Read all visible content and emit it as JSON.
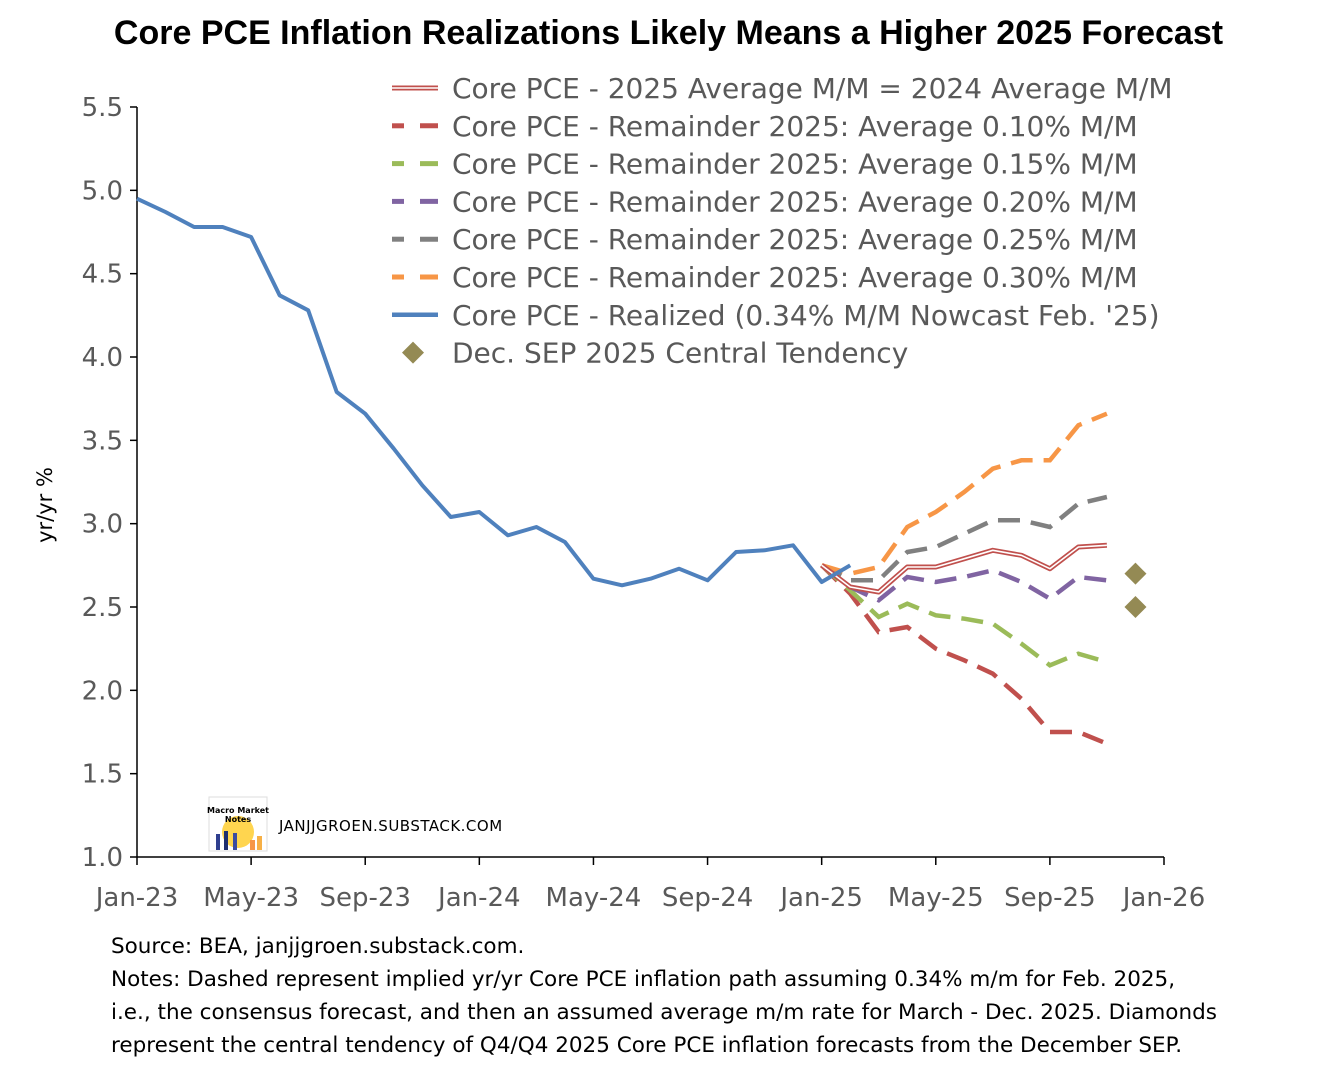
{
  "chart_data": {
    "type": "line",
    "title": "Core PCE Inflation Realizations Likely Means a Higher 2025 Forecast",
    "ylabel": "yr/yr %",
    "xlabel": "",
    "ylim": [
      1.0,
      5.5
    ],
    "y_ticks": [
      "1.0",
      "1.5",
      "2.0",
      "2.5",
      "3.0",
      "3.5",
      "4.0",
      "4.5",
      "5.0",
      "5.5"
    ],
    "x_ticks": [
      "Jan-23",
      "May-23",
      "Sep-23",
      "Jan-24",
      "May-24",
      "Sep-24",
      "Jan-25",
      "May-25",
      "Sep-25",
      "Jan-26"
    ],
    "x_start": "Jan-23",
    "legend_position": "top-right",
    "grid": false,
    "series": [
      {
        "name": "Core PCE - 2025 Average M/M = 2024 Average M/M",
        "style": "double",
        "color": "#c0504d",
        "points": [
          [
            "Jan-25",
            2.75
          ],
          [
            "Feb-25",
            2.62
          ],
          [
            "Mar-25",
            2.59
          ],
          [
            "Apr-25",
            2.74
          ],
          [
            "May-25",
            2.74
          ],
          [
            "Jun-25",
            2.79
          ],
          [
            "Jul-25",
            2.84
          ],
          [
            "Aug-25",
            2.81
          ],
          [
            "Sep-25",
            2.73
          ],
          [
            "Oct-25",
            2.86
          ],
          [
            "Nov-25",
            2.87
          ]
        ]
      },
      {
        "name": "Core PCE - Remainder 2025: Average 0.10% M/M",
        "style": "dashed",
        "color": "#c0504d",
        "points": [
          [
            "Jan-25",
            2.75
          ],
          [
            "Feb-25",
            2.58
          ],
          [
            "Mar-25",
            2.35
          ],
          [
            "Apr-25",
            2.38
          ],
          [
            "May-25",
            2.25
          ],
          [
            "Jun-25",
            2.18
          ],
          [
            "Jul-25",
            2.1
          ],
          [
            "Aug-25",
            1.95
          ],
          [
            "Sep-25",
            1.75
          ],
          [
            "Oct-25",
            1.75
          ],
          [
            "Nov-25",
            1.68
          ]
        ]
      },
      {
        "name": "Core PCE - Remainder 2025: Average 0.15% M/M",
        "style": "dashed",
        "color": "#9bbb59",
        "points": [
          [
            "Jan-25",
            2.75
          ],
          [
            "Feb-25",
            2.6
          ],
          [
            "Mar-25",
            2.44
          ],
          [
            "Apr-25",
            2.52
          ],
          [
            "May-25",
            2.45
          ],
          [
            "Jun-25",
            2.43
          ],
          [
            "Jul-25",
            2.4
          ],
          [
            "Aug-25",
            2.28
          ],
          [
            "Sep-25",
            2.15
          ],
          [
            "Oct-25",
            2.22
          ],
          [
            "Nov-25",
            2.17
          ]
        ]
      },
      {
        "name": "Core PCE - Remainder 2025: Average 0.20% M/M",
        "style": "dashed",
        "color": "#8064a2",
        "points": [
          [
            "Jan-25",
            2.75
          ],
          [
            "Feb-25",
            2.62
          ],
          [
            "Mar-25",
            2.54
          ],
          [
            "Apr-25",
            2.68
          ],
          [
            "May-25",
            2.65
          ],
          [
            "Jun-25",
            2.68
          ],
          [
            "Jul-25",
            2.72
          ],
          [
            "Aug-25",
            2.65
          ],
          [
            "Sep-25",
            2.55
          ],
          [
            "Oct-25",
            2.68
          ],
          [
            "Nov-25",
            2.66
          ]
        ]
      },
      {
        "name": "Core PCE - Remainder 2025: Average 0.25% M/M",
        "style": "dashed",
        "color": "#808080",
        "points": [
          [
            "Jan-25",
            2.75
          ],
          [
            "Feb-25",
            2.66
          ],
          [
            "Mar-25",
            2.66
          ],
          [
            "Apr-25",
            2.83
          ],
          [
            "May-25",
            2.86
          ],
          [
            "Jun-25",
            2.94
          ],
          [
            "Jul-25",
            3.02
          ],
          [
            "Aug-25",
            3.02
          ],
          [
            "Sep-25",
            2.98
          ],
          [
            "Oct-25",
            3.12
          ],
          [
            "Nov-25",
            3.16
          ]
        ]
      },
      {
        "name": "Core PCE - Remainder 2025: Average 0.30% M/M",
        "style": "dashed",
        "color": "#f79646",
        "points": [
          [
            "Jan-25",
            2.75
          ],
          [
            "Feb-25",
            2.7
          ],
          [
            "Mar-25",
            2.74
          ],
          [
            "Apr-25",
            2.98
          ],
          [
            "May-25",
            3.07
          ],
          [
            "Jun-25",
            3.19
          ],
          [
            "Jul-25",
            3.33
          ],
          [
            "Aug-25",
            3.38
          ],
          [
            "Sep-25",
            3.38
          ],
          [
            "Oct-25",
            3.59
          ],
          [
            "Nov-25",
            3.66
          ]
        ]
      },
      {
        "name": "Core PCE - Realized (0.34% M/M Nowcast Feb. '25)",
        "style": "solid",
        "color": "#4f81bd",
        "points": [
          [
            "Jan-23",
            4.95
          ],
          [
            "Feb-23",
            4.87
          ],
          [
            "Mar-23",
            4.78
          ],
          [
            "Apr-23",
            4.78
          ],
          [
            "May-23",
            4.72
          ],
          [
            "Jun-23",
            4.37
          ],
          [
            "Jul-23",
            4.28
          ],
          [
            "Aug-23",
            3.79
          ],
          [
            "Sep-23",
            3.66
          ],
          [
            "Oct-23",
            3.45
          ],
          [
            "Nov-23",
            3.23
          ],
          [
            "Dec-23",
            3.04
          ],
          [
            "Jan-24",
            3.07
          ],
          [
            "Feb-24",
            2.93
          ],
          [
            "Mar-24",
            2.98
          ],
          [
            "Apr-24",
            2.89
          ],
          [
            "May-24",
            2.67
          ],
          [
            "Jun-24",
            2.63
          ],
          [
            "Jul-24",
            2.67
          ],
          [
            "Aug-24",
            2.73
          ],
          [
            "Sep-24",
            2.66
          ],
          [
            "Oct-24",
            2.83
          ],
          [
            "Nov-24",
            2.84
          ],
          [
            "Dec-24",
            2.87
          ],
          [
            "Jan-25",
            2.65
          ],
          [
            "Feb-25",
            2.75
          ]
        ]
      },
      {
        "name": "Dec. SEP 2025 Central Tendency",
        "style": "marker",
        "color": "#948a54",
        "points": [
          [
            "Dec-25",
            2.7
          ],
          [
            "Dec-25",
            2.5
          ]
        ]
      }
    ]
  },
  "watermark": {
    "logo_text_line1": "Macro Market",
    "logo_text_line2": "Notes",
    "site": "JANJJGROEN.SUBSTACK.COM"
  },
  "notes": {
    "source": "Source: BEA, janjjgroen.substack.com.",
    "line1": "Notes: Dashed represent implied yr/yr Core PCE inflation path assuming 0.34% m/m for Feb. 2025,",
    "line2": "i.e., the consensus forecast, and then an assumed average m/m rate for March - Dec. 2025. Diamonds",
    "line3": "represent the central tendency of Q4/Q4 2025 Core PCE inflation forecasts from the December SEP."
  },
  "colors": {
    "axis": "#000000",
    "tick_text": "#595959"
  }
}
